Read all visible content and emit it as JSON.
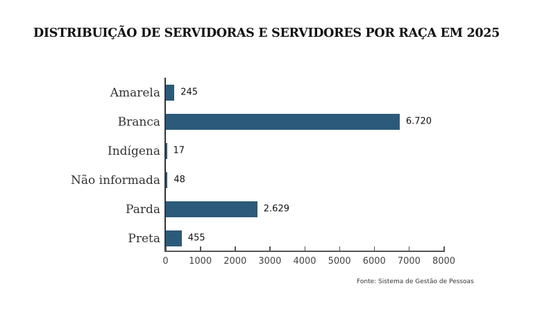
{
  "title": "DISTRIBUIÇÃO DE SERVIDORAS E SERVIDORES POR RAÇA EM 2025",
  "source": "Fonte: Sistema de Gestão de Pessoas",
  "bar_color": "#2b5a7a",
  "chart_data": {
    "type": "bar",
    "orientation": "horizontal",
    "title": "DISTRIBUIÇÃO DE SERVIDORAS E SERVIDORES POR RAÇA EM 2025",
    "categories": [
      "Amarela",
      "Branca",
      "Indígena",
      "Não informada",
      "Parda",
      "Preta"
    ],
    "values": [
      245,
      6720,
      17,
      48,
      2629,
      455
    ],
    "value_labels": [
      "245",
      "6.720",
      "17",
      "48",
      "2.629",
      "455"
    ],
    "xlabel": "",
    "ylabel": "",
    "xlim": [
      0,
      8000
    ],
    "xticks": [
      "0",
      "1000",
      "2000",
      "3000",
      "4000",
      "5000",
      "6000",
      "7000",
      "8000"
    ],
    "grid": false,
    "legend": null,
    "source": "Fonte: Sistema de Gestão de Pessoas"
  }
}
